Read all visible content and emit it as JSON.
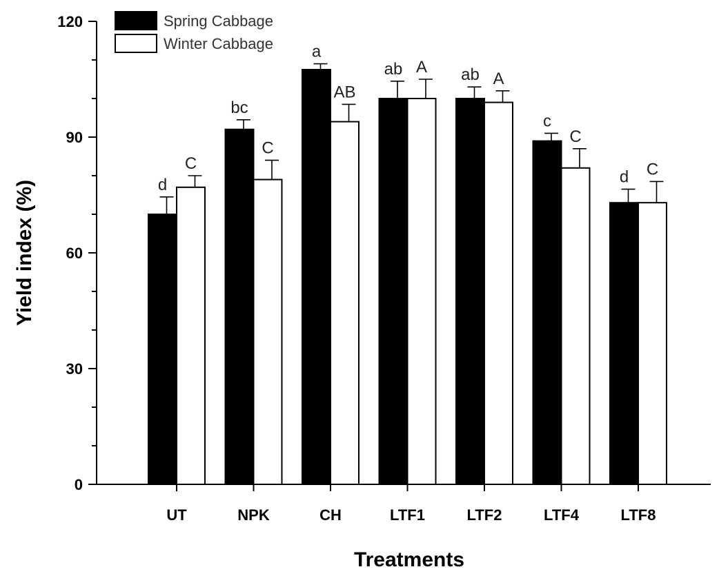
{
  "chart_data": {
    "type": "bar",
    "title": "",
    "xlabel": "Treatments",
    "ylabel": "Yield index (%)",
    "ylim": [
      0,
      120
    ],
    "yticks": [
      0,
      30,
      60,
      90,
      120
    ],
    "minor_step": 10,
    "grid": false,
    "legend_position": "top-left",
    "categories": [
      "UT",
      "NPK",
      "CH",
      "LTF1",
      "LTF2",
      "LTF4",
      "LTF8"
    ],
    "series": [
      {
        "name": "Spring Cabbage",
        "color": "#000000",
        "values": [
          70,
          92,
          107.5,
          100,
          100,
          89,
          73
        ],
        "errors": [
          4.5,
          2.5,
          1.5,
          4.5,
          3,
          2,
          3.5
        ],
        "labels": [
          "d",
          "bc",
          "a",
          "ab",
          "ab",
          "c",
          "d"
        ]
      },
      {
        "name": "Winter Cabbage",
        "color": "#ffffff",
        "values": [
          77,
          79,
          94,
          100,
          99,
          82,
          73
        ],
        "errors": [
          3,
          5,
          4.5,
          5,
          3,
          5,
          5.5
        ],
        "labels": [
          "C",
          "C",
          "AB",
          "A",
          "A",
          "C",
          "C"
        ]
      }
    ]
  }
}
